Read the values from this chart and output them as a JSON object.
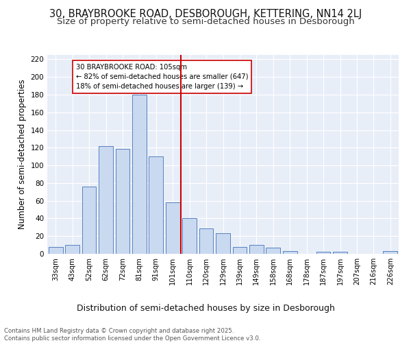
{
  "title1": "30, BRAYBROOKE ROAD, DESBOROUGH, KETTERING, NN14 2LJ",
  "title2": "Size of property relative to semi-detached houses in Desborough",
  "xlabel": "Distribution of semi-detached houses by size in Desborough",
  "ylabel": "Number of semi-detached properties",
  "categories": [
    "33sqm",
    "43sqm",
    "52sqm",
    "62sqm",
    "72sqm",
    "81sqm",
    "91sqm",
    "101sqm",
    "110sqm",
    "120sqm",
    "129sqm",
    "139sqm",
    "149sqm",
    "158sqm",
    "168sqm",
    "178sqm",
    "187sqm",
    "197sqm",
    "207sqm",
    "216sqm",
    "226sqm"
  ],
  "values": [
    8,
    10,
    76,
    122,
    119,
    180,
    110,
    58,
    40,
    29,
    23,
    8,
    10,
    7,
    3,
    0,
    2,
    2,
    0,
    0,
    3
  ],
  "bar_color": "#c9d9f0",
  "bar_edge_color": "#5580c0",
  "vline_x": 7.5,
  "vline_color": "#cc0000",
  "annotation_title": "30 BRAYBROOKE ROAD: 105sqm",
  "annotation_line1": "← 82% of semi-detached houses are smaller (647)",
  "annotation_line2": "18% of semi-detached houses are larger (139) →",
  "annotation_box_color": "#ffffff",
  "annotation_box_edge": "#cc0000",
  "ylim": [
    0,
    225
  ],
  "yticks": [
    0,
    20,
    40,
    60,
    80,
    100,
    120,
    140,
    160,
    180,
    200,
    220
  ],
  "background_color": "#e8eef8",
  "footer_text": "Contains HM Land Registry data © Crown copyright and database right 2025.\nContains public sector information licensed under the Open Government Licence v3.0.",
  "title1_fontsize": 10.5,
  "title2_fontsize": 9.5,
  "xlabel_fontsize": 9,
  "ylabel_fontsize": 8.5
}
